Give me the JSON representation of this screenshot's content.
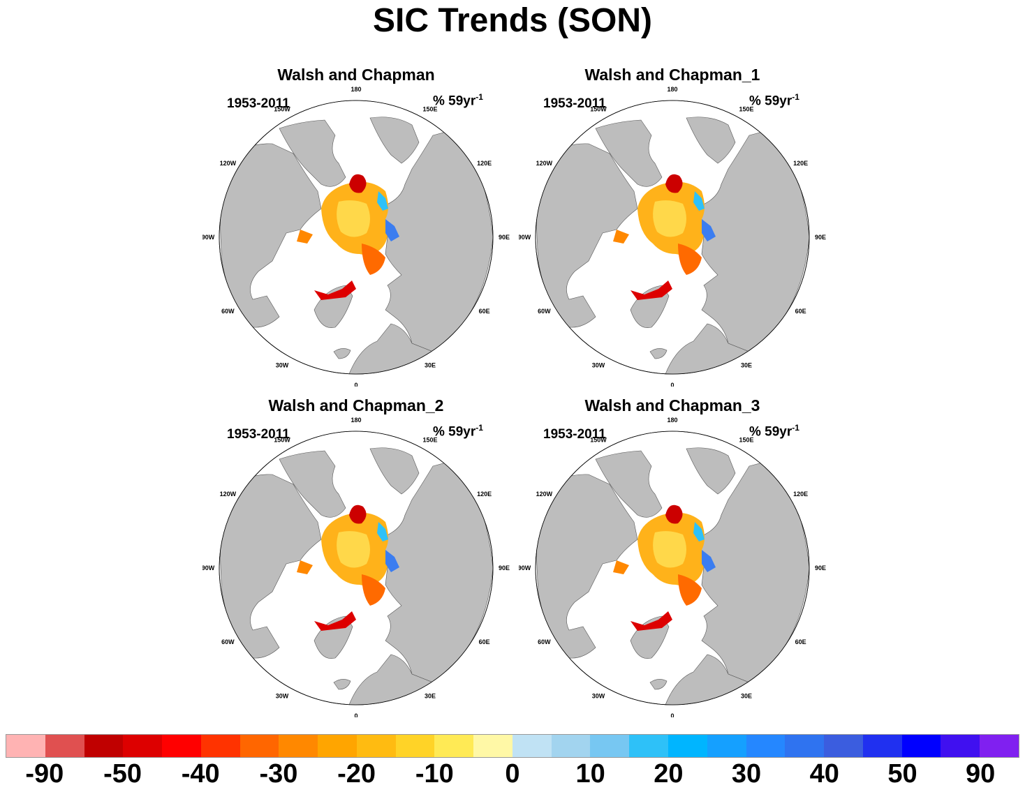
{
  "title": "SIC Trends (SON)",
  "panels": [
    {
      "title": "Walsh and Chapman",
      "period": "1953-2011",
      "units": "% 59yr",
      "units_exp": "-1"
    },
    {
      "title": "Walsh and Chapman_1",
      "period": "1953-2011",
      "units": "% 59yr",
      "units_exp": "-1"
    },
    {
      "title": "Walsh and Chapman_2",
      "period": "1953-2011",
      "units": "% 59yr",
      "units_exp": "-1"
    },
    {
      "title": "Walsh and Chapman_3",
      "period": "1953-2011",
      "units": "% 59yr",
      "units_exp": "-1"
    }
  ],
  "longitude_labels": [
    "180",
    "150E",
    "120E",
    "90E",
    "60E",
    "30E",
    "0",
    "30W",
    "60W",
    "90W",
    "120W",
    "150W"
  ],
  "colorbar": {
    "colors": [
      "#ffb3b3",
      "#e05050",
      "#c00000",
      "#dd0000",
      "#ff0000",
      "#ff3300",
      "#ff6600",
      "#ff8800",
      "#ffa500",
      "#ffbb11",
      "#ffd327",
      "#ffea55",
      "#fff8a6",
      "#c0e2f4",
      "#a2d4ef",
      "#77c7f2",
      "#2ec1f8",
      "#00b5ff",
      "#15a0ff",
      "#2587ff",
      "#2f73f0",
      "#3b5ddf",
      "#2030f0",
      "#0000ff",
      "#4010f0",
      "#8020f0"
    ],
    "labels": [
      "-90",
      "-50",
      "-40",
      "-30",
      "-20",
      "-10",
      "0",
      "10",
      "20",
      "30",
      "40",
      "50",
      "90"
    ]
  }
}
